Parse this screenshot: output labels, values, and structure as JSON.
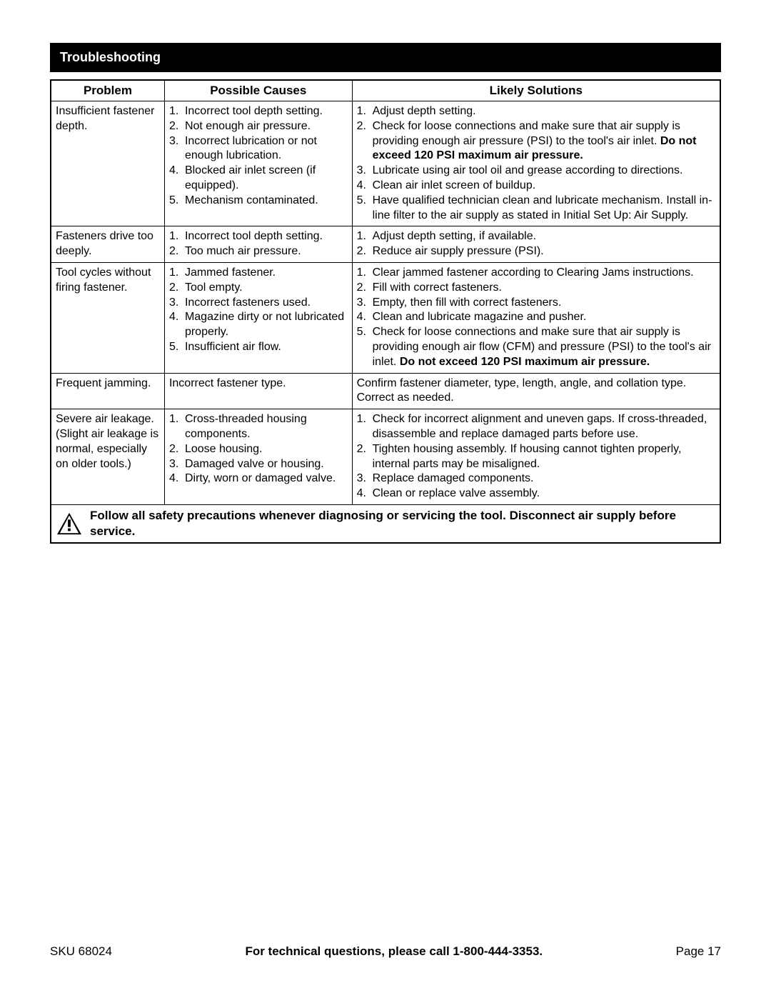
{
  "section_title": "Troubleshooting",
  "headers": {
    "problem": "Problem",
    "causes": "Possible Causes",
    "solutions": "Likely Solutions"
  },
  "rows": [
    {
      "problem": "Insufficient fastener depth.",
      "items": [
        {
          "n": "1.",
          "cause": "Incorrect tool depth setting.",
          "sol": "Adjust depth setting."
        },
        {
          "n": "2.",
          "cause": "Not enough air pressure.",
          "sol_parts": [
            {
              "t": "Check for loose connections and make sure that air supply is providing enough air pressure (PSI) to the tool's air inlet.  "
            },
            {
              "t": "Do not exceed 120 PSI maximum air pressure.",
              "bold": true
            }
          ]
        },
        {
          "n": "3.",
          "cause": "Incorrect lubrication or not enough lubrication.",
          "sol": "Lubricate using air tool oil and grease according to directions."
        },
        {
          "n": "4.",
          "cause": "Blocked air inlet screen (if equipped).",
          "sol": "Clean air inlet screen of buildup."
        },
        {
          "n": "5.",
          "cause": "Mechanism contaminated.",
          "sol": "Have qualified technician clean and lubricate mechanism.  Install in-line filter to the air supply as stated in Initial Set Up: Air Supply."
        }
      ]
    },
    {
      "problem": "Fasteners drive too deeply.",
      "items": [
        {
          "n": "1.",
          "cause": "Incorrect tool depth setting.",
          "sol": "Adjust depth setting, if available."
        },
        {
          "n": "2.",
          "cause": "Too much air pressure.",
          "sol": "Reduce air supply pressure (PSI)."
        }
      ]
    },
    {
      "problem": "Tool cycles without firing fastener.",
      "items": [
        {
          "n": "1.",
          "cause": "Jammed fastener.",
          "sol": "Clear jammed fastener according to Clearing Jams instructions."
        },
        {
          "n": "2.",
          "cause": "Tool empty.",
          "sol": "Fill with correct fasteners."
        },
        {
          "n": "3.",
          "cause": "Incorrect fasteners used.",
          "sol": "Empty, then fill with correct fasteners."
        },
        {
          "n": "4.",
          "cause": "Magazine dirty or not lubricated properly.",
          "sol": "Clean and lubricate magazine and pusher."
        },
        {
          "n": "5.",
          "cause": "Insufficient air flow.",
          "sol_parts": [
            {
              "t": "Check for loose connections and make sure that air supply is providing enough air flow (CFM) and pressure (PSI) to the tool's air inlet.  "
            },
            {
              "t": "Do not exceed 120 PSI maximum air pressure.",
              "bold": true
            }
          ]
        }
      ]
    },
    {
      "problem": "Frequent jamming.",
      "plain_cause": "Incorrect fastener type.",
      "plain_sol": "Confirm fastener diameter, type, length, angle, and collation type.  Correct as needed."
    },
    {
      "problem": "Severe air leakage. (Slight air leakage is normal, especially on older tools.)",
      "items": [
        {
          "n": "1.",
          "cause": "Cross-threaded housing components.",
          "sol": "Check for incorrect alignment and uneven gaps.  If cross-threaded, disassemble and replace damaged parts before use."
        },
        {
          "n": "2.",
          "cause": "Loose housing.",
          "sol": "Tighten housing assembly.  If housing cannot tighten properly, internal parts may be misaligned."
        },
        {
          "n": "3.",
          "cause": "Damaged valve or housing.",
          "sol": "Replace damaged components."
        },
        {
          "n": "4.",
          "cause": "Dirty, worn or damaged valve.",
          "sol": "Clean or replace valve assembly."
        }
      ]
    }
  ],
  "warning": "Follow all safety precautions whenever diagnosing or servicing the tool.  Disconnect air supply before service.",
  "footer": {
    "sku": "SKU 68024",
    "call": "For technical questions, please call 1-800-444-3353.",
    "page": "Page 17"
  }
}
